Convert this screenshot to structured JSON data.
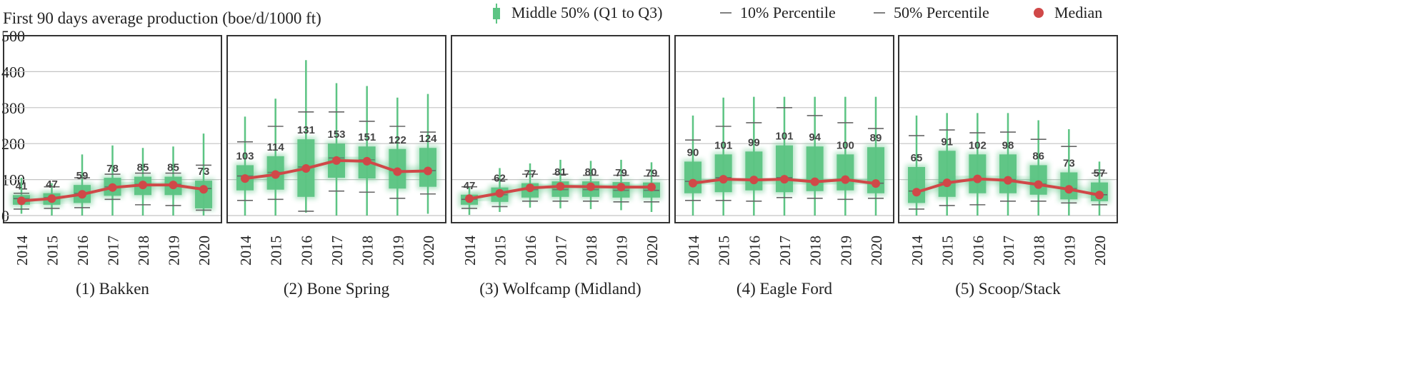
{
  "chart_data": {
    "type": "box",
    "title": "First 90 days average production (boe/d/1000 ft)",
    "ylim": [
      0,
      500
    ],
    "y_ticks": [
      0,
      100,
      200,
      300,
      400,
      500
    ],
    "grid": true,
    "legend_position": "top",
    "legend": [
      {
        "label": "Middle 50% (Q1 to Q3)",
        "symbol": "box"
      },
      {
        "label": "10% Percentile",
        "symbol": "dash"
      },
      {
        "label": "50% Percentile",
        "symbol": "dash"
      },
      {
        "label": "Median",
        "symbol": "dot"
      }
    ],
    "categories": [
      "2014",
      "2015",
      "2016",
      "2017",
      "2018",
      "2019",
      "2020"
    ],
    "colors": {
      "box": "#5cc483",
      "median": "#d04848",
      "grid": "#c4c4c4",
      "frame": "#333333"
    },
    "panels": [
      {
        "name": "(1) Bakken",
        "median": [
          41,
          47,
          59,
          78,
          85,
          85,
          73
        ],
        "q1": [
          30,
          30,
          35,
          55,
          57,
          57,
          20
        ],
        "q3": [
          57,
          62,
          85,
          105,
          108,
          108,
          97
        ],
        "p10": [
          18,
          20,
          22,
          45,
          30,
          28,
          15
        ],
        "p50": [
          47,
          50,
          62,
          80,
          87,
          87,
          75
        ],
        "p90": [
          62,
          80,
          105,
          115,
          118,
          118,
          140
        ],
        "min": [
          5,
          0,
          0,
          0,
          0,
          0,
          0
        ],
        "max": [
          105,
          90,
          170,
          195,
          188,
          192,
          228
        ]
      },
      {
        "name": "(2) Bone Spring",
        "median": [
          103,
          114,
          131,
          153,
          151,
          122,
          124
        ],
        "q1": [
          70,
          72,
          52,
          105,
          103,
          75,
          80
        ],
        "q3": [
          140,
          165,
          212,
          200,
          192,
          185,
          188
        ],
        "p10": [
          42,
          45,
          12,
          68,
          65,
          48,
          60
        ],
        "p50": [
          110,
          120,
          135,
          160,
          155,
          125,
          125
        ],
        "p90": [
          205,
          248,
          288,
          288,
          262,
          248,
          232
        ],
        "min": [
          0,
          0,
          8,
          0,
          0,
          0,
          5
        ],
        "max": [
          275,
          325,
          432,
          368,
          360,
          328,
          338
        ]
      },
      {
        "name": "(3) Wolfcamp (Midland)",
        "median": [
          47,
          62,
          77,
          81,
          80,
          79,
          79
        ],
        "q1": [
          30,
          38,
          50,
          52,
          52,
          50,
          50
        ],
        "q3": [
          58,
          78,
          90,
          95,
          95,
          93,
          92
        ],
        "p10": [
          20,
          25,
          40,
          40,
          40,
          38,
          38
        ],
        "p50": [
          45,
          58,
          72,
          72,
          72,
          70,
          70
        ],
        "p90": [
          80,
          100,
          115,
          115,
          112,
          112,
          110
        ],
        "min": [
          2,
          10,
          22,
          20,
          18,
          15,
          10
        ],
        "max": [
          78,
          132,
          145,
          155,
          152,
          155,
          148
        ]
      },
      {
        "name": "(4) Eagle Ford",
        "median": [
          90,
          101,
          99,
          101,
          94,
          100,
          89
        ],
        "q1": [
          62,
          65,
          70,
          65,
          68,
          70,
          62
        ],
        "q3": [
          150,
          170,
          178,
          195,
          192,
          170,
          190
        ],
        "p10": [
          42,
          42,
          40,
          50,
          48,
          45,
          48
        ],
        "p50": [
          95,
          105,
          100,
          105,
          95,
          100,
          90
        ],
        "p90": [
          210,
          248,
          258,
          300,
          278,
          258,
          242
        ],
        "min": [
          0,
          0,
          0,
          0,
          0,
          0,
          0
        ],
        "max": [
          278,
          328,
          330,
          330,
          330,
          330,
          330
        ]
      },
      {
        "name": "(5) Scoop/Stack",
        "median": [
          65,
          91,
          102,
          98,
          86,
          73,
          57
        ],
        "q1": [
          35,
          52,
          62,
          62,
          58,
          45,
          40
        ],
        "q3": [
          135,
          180,
          170,
          170,
          140,
          120,
          92
        ],
        "p10": [
          18,
          28,
          30,
          40,
          40,
          35,
          30
        ],
        "p50": [
          68,
          92,
          102,
          100,
          88,
          75,
          58
        ],
        "p90": [
          222,
          238,
          230,
          232,
          212,
          192,
          118
        ],
        "min": [
          0,
          0,
          0,
          0,
          0,
          0,
          0
        ],
        "max": [
          278,
          285,
          285,
          285,
          265,
          240,
          150
        ]
      }
    ]
  }
}
